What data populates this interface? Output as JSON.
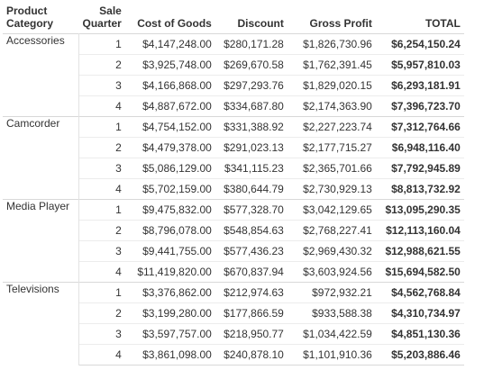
{
  "table": {
    "headers": {
      "category": [
        "Product",
        "Category"
      ],
      "quarter": [
        "Sale",
        "Quarter"
      ],
      "cost": "Cost of Goods",
      "discount": "Discount",
      "profit": "Gross Profit",
      "total": "TOTAL"
    },
    "groups": [
      {
        "category": "Accessories",
        "rows": [
          {
            "quarter": "1",
            "cost": "$4,147,248.00",
            "discount": "$280,171.28",
            "profit": "$1,826,730.96",
            "total": "$6,254,150.24"
          },
          {
            "quarter": "2",
            "cost": "$3,925,748.00",
            "discount": "$269,670.58",
            "profit": "$1,762,391.45",
            "total": "$5,957,810.03"
          },
          {
            "quarter": "3",
            "cost": "$4,166,868.00",
            "discount": "$297,293.76",
            "profit": "$1,829,020.15",
            "total": "$6,293,181.91"
          },
          {
            "quarter": "4",
            "cost": "$4,887,672.00",
            "discount": "$334,687.80",
            "profit": "$2,174,363.90",
            "total": "$7,396,723.70"
          }
        ]
      },
      {
        "category": "Camcorder",
        "rows": [
          {
            "quarter": "1",
            "cost": "$4,754,152.00",
            "discount": "$331,388.92",
            "profit": "$2,227,223.74",
            "total": "$7,312,764.66"
          },
          {
            "quarter": "2",
            "cost": "$4,479,378.00",
            "discount": "$291,023.13",
            "profit": "$2,177,715.27",
            "total": "$6,948,116.40"
          },
          {
            "quarter": "3",
            "cost": "$5,086,129.00",
            "discount": "$341,115.23",
            "profit": "$2,365,701.66",
            "total": "$7,792,945.89"
          },
          {
            "quarter": "4",
            "cost": "$5,702,159.00",
            "discount": "$380,644.79",
            "profit": "$2,730,929.13",
            "total": "$8,813,732.92"
          }
        ]
      },
      {
        "category": "Media Player",
        "rows": [
          {
            "quarter": "1",
            "cost": "$9,475,832.00",
            "discount": "$577,328.70",
            "profit": "$3,042,129.65",
            "total": "$13,095,290.35"
          },
          {
            "quarter": "2",
            "cost": "$8,796,078.00",
            "discount": "$548,854.63",
            "profit": "$2,768,227.41",
            "total": "$12,113,160.04"
          },
          {
            "quarter": "3",
            "cost": "$9,441,755.00",
            "discount": "$577,436.23",
            "profit": "$2,969,430.32",
            "total": "$12,988,621.55"
          },
          {
            "quarter": "4",
            "cost": "$11,419,820.00",
            "discount": "$670,837.94",
            "profit": "$3,603,924.56",
            "total": "$15,694,582.50"
          }
        ]
      },
      {
        "category": "Televisions",
        "rows": [
          {
            "quarter": "1",
            "cost": "$3,376,862.00",
            "discount": "$212,974.63",
            "profit": "$972,932.21",
            "total": "$4,562,768.84"
          },
          {
            "quarter": "2",
            "cost": "$3,199,280.00",
            "discount": "$177,866.59",
            "profit": "$933,588.38",
            "total": "$4,310,734.97"
          },
          {
            "quarter": "3",
            "cost": "$3,597,757.00",
            "discount": "$218,950.77",
            "profit": "$1,034,422.59",
            "total": "$4,851,130.36"
          },
          {
            "quarter": "4",
            "cost": "$3,861,098.00",
            "discount": "$240,878.10",
            "profit": "$1,101,910.36",
            "total": "$5,203,886.46"
          }
        ]
      }
    ]
  }
}
